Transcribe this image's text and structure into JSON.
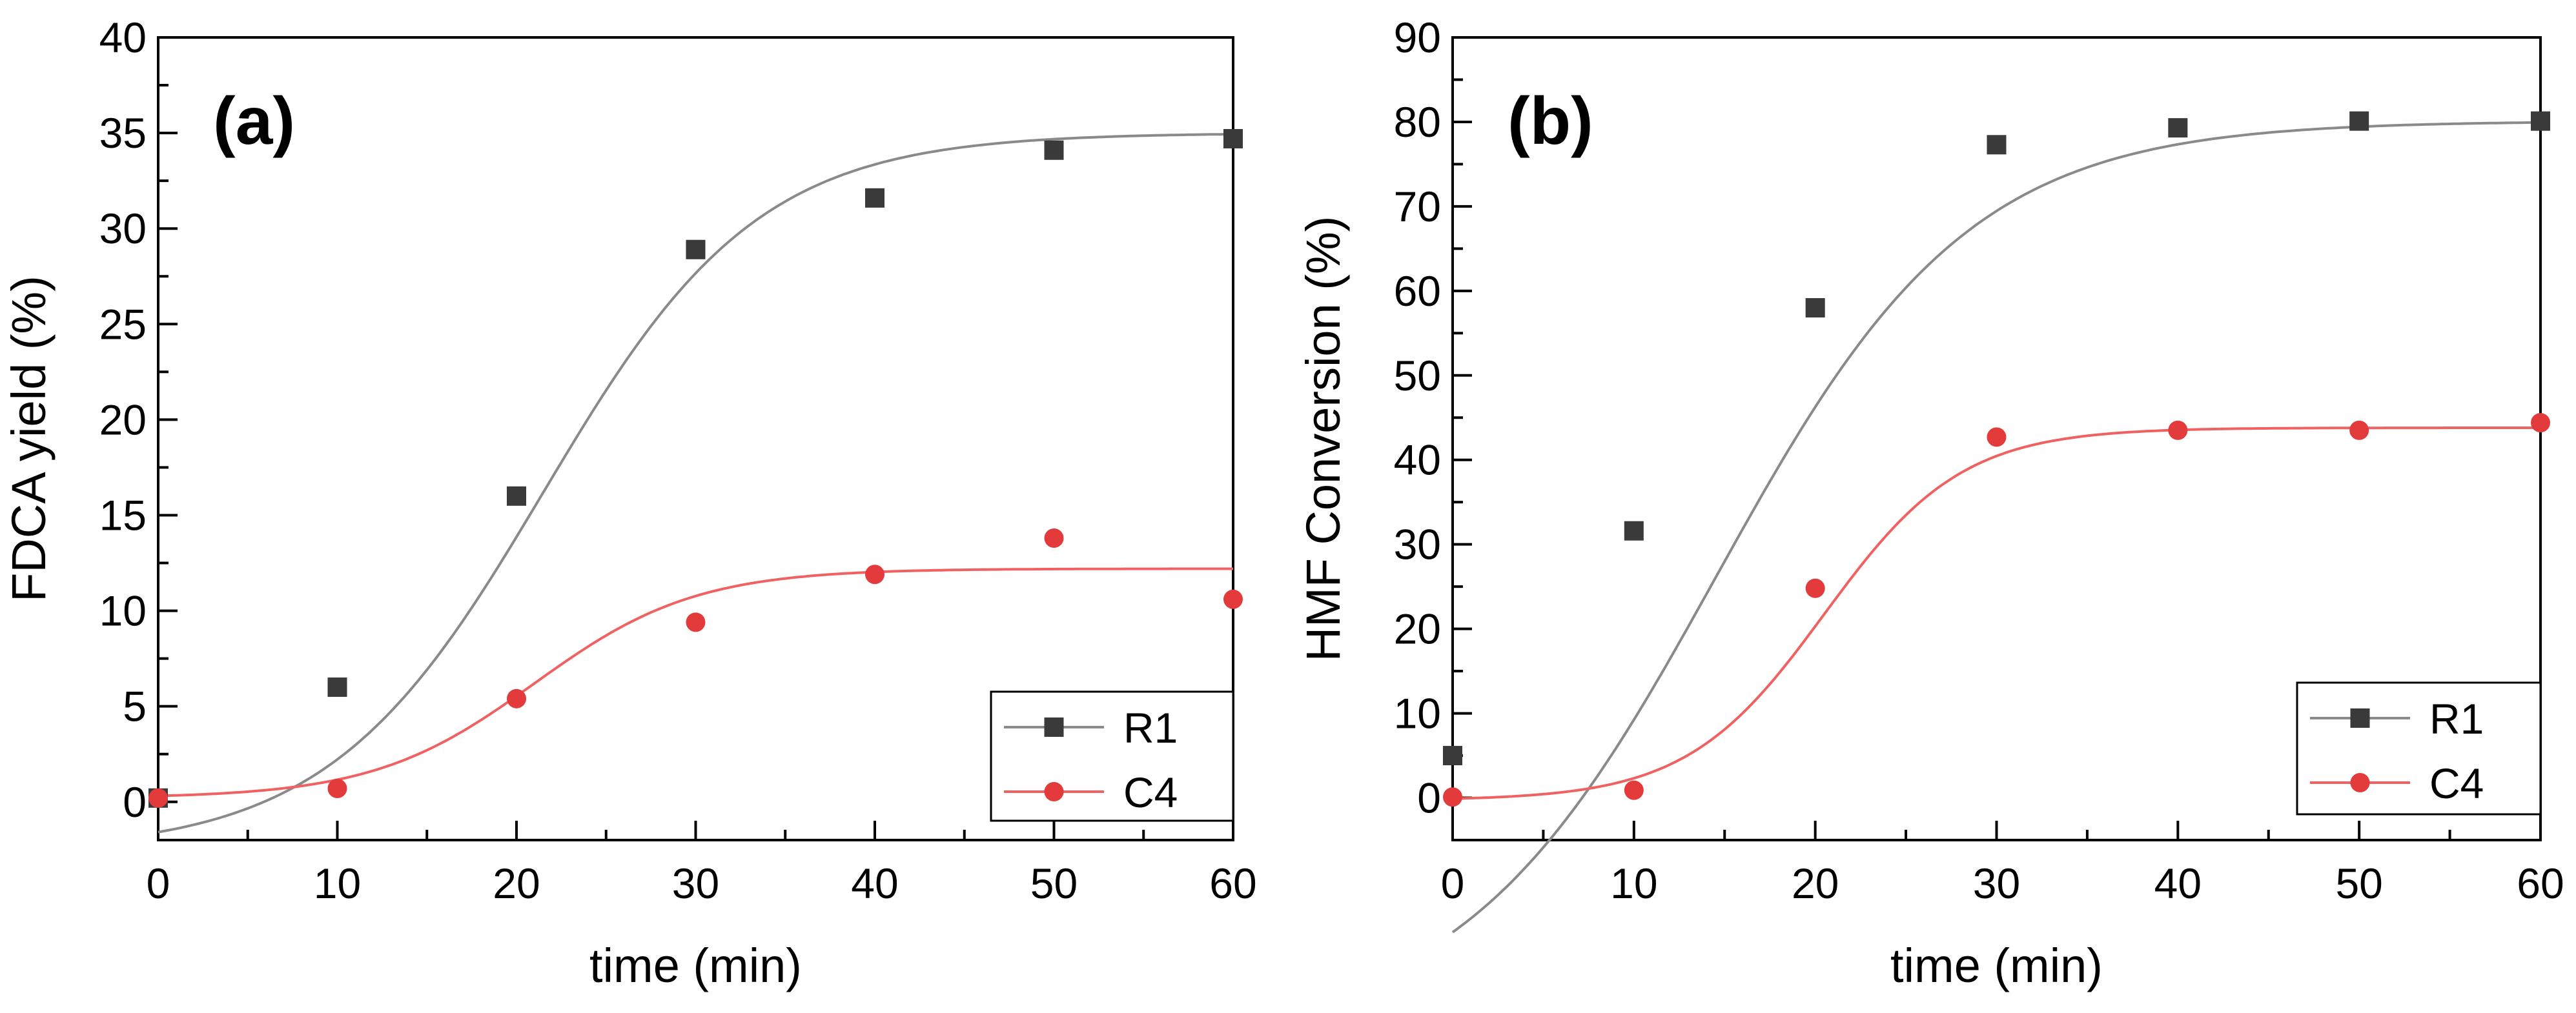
{
  "chart_data": [
    {
      "type": "scatter",
      "panel_label": "(a)",
      "xlabel": "time (min)",
      "ylabel": "FDCA yield (%)",
      "xlim": [
        0,
        60
      ],
      "ylim": [
        -2,
        40
      ],
      "x_ticks": [
        0,
        10,
        20,
        30,
        40,
        50,
        60
      ],
      "y_ticks": [
        0,
        5,
        10,
        15,
        20,
        25,
        30,
        35,
        40
      ],
      "legend_position": "bottom-right",
      "series": [
        {
          "name": "R1",
          "marker": "square",
          "color": "#3a3a3a",
          "line_color": "#8a8a8a",
          "x": [
            0,
            10,
            20,
            30,
            40,
            50,
            60
          ],
          "values": [
            0.2,
            6.0,
            16.0,
            28.9,
            31.6,
            34.1,
            34.7
          ],
          "fit": {
            "type": "sigmoid",
            "A1": -2.6,
            "A2": 35.0,
            "x0": 21.5,
            "dx": 6.0
          }
        },
        {
          "name": "C4",
          "marker": "circle",
          "color": "#e33b3b",
          "line_color": "#f06262",
          "x": [
            0,
            10,
            20,
            30,
            40,
            50,
            60
          ],
          "values": [
            0.2,
            0.7,
            5.4,
            9.4,
            11.9,
            13.8,
            10.6
          ],
          "fit": {
            "type": "sigmoid",
            "A1": 0.2,
            "A2": 12.2,
            "x0": 21.0,
            "dx": 4.5
          }
        }
      ]
    },
    {
      "type": "scatter",
      "panel_label": "(b)",
      "xlabel": "time (min)",
      "ylabel": "HMF Conversion (%)",
      "xlim": [
        0,
        60
      ],
      "ylim": [
        -5,
        90
      ],
      "x_ticks": [
        0,
        10,
        20,
        30,
        40,
        50,
        60
      ],
      "y_ticks": [
        0,
        10,
        20,
        30,
        40,
        50,
        60,
        70,
        80,
        90
      ],
      "legend_position": "bottom-right",
      "series": [
        {
          "name": "R1",
          "marker": "square",
          "color": "#3a3a3a",
          "line_color": "#8a8a8a",
          "x": [
            0,
            10,
            20,
            30,
            40,
            50,
            60
          ],
          "values": [
            5.0,
            31.6,
            58.0,
            77.3,
            79.3,
            80.1,
            80.1
          ],
          "fit": {
            "type": "sigmoid",
            "A1": -28.0,
            "A2": 80.1,
            "x0": 14.5,
            "dx": 7.0
          }
        },
        {
          "name": "C4",
          "marker": "circle",
          "color": "#e33b3b",
          "line_color": "#f06262",
          "x": [
            0,
            10,
            20,
            30,
            40,
            50,
            60
          ],
          "values": [
            0.1,
            0.9,
            24.8,
            42.7,
            43.5,
            43.5,
            44.4
          ],
          "fit": {
            "type": "sigmoid",
            "A1": -0.3,
            "A2": 43.8,
            "x0": 20.5,
            "dx": 3.8
          }
        }
      ]
    }
  ]
}
